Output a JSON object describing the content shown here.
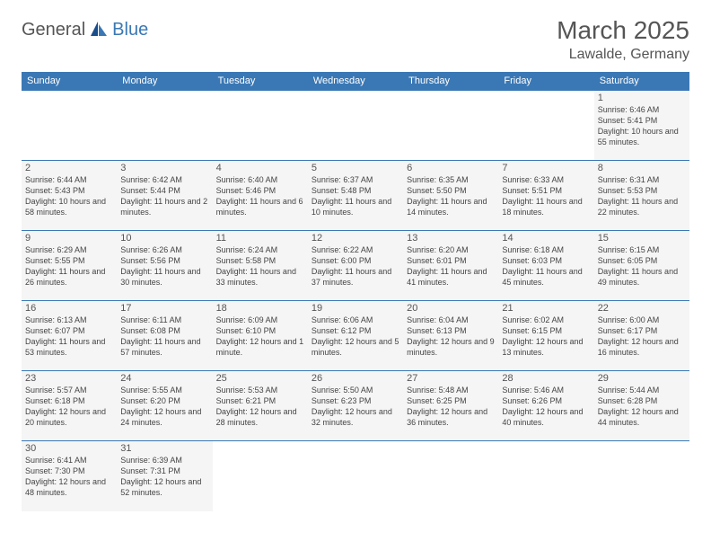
{
  "logo": {
    "part1": "General",
    "part2": "Blue"
  },
  "title": "March 2025",
  "location": "Lawalde, Germany",
  "headerBg": "#3a78b5",
  "dayNames": [
    "Sunday",
    "Monday",
    "Tuesday",
    "Wednesday",
    "Thursday",
    "Friday",
    "Saturday"
  ],
  "firstDayOffset": 6,
  "daysInMonth": 31,
  "days": {
    "1": {
      "sr": "6:46 AM",
      "ss": "5:41 PM",
      "dl": "10 hours and 55 minutes."
    },
    "2": {
      "sr": "6:44 AM",
      "ss": "5:43 PM",
      "dl": "10 hours and 58 minutes."
    },
    "3": {
      "sr": "6:42 AM",
      "ss": "5:44 PM",
      "dl": "11 hours and 2 minutes."
    },
    "4": {
      "sr": "6:40 AM",
      "ss": "5:46 PM",
      "dl": "11 hours and 6 minutes."
    },
    "5": {
      "sr": "6:37 AM",
      "ss": "5:48 PM",
      "dl": "11 hours and 10 minutes."
    },
    "6": {
      "sr": "6:35 AM",
      "ss": "5:50 PM",
      "dl": "11 hours and 14 minutes."
    },
    "7": {
      "sr": "6:33 AM",
      "ss": "5:51 PM",
      "dl": "11 hours and 18 minutes."
    },
    "8": {
      "sr": "6:31 AM",
      "ss": "5:53 PM",
      "dl": "11 hours and 22 minutes."
    },
    "9": {
      "sr": "6:29 AM",
      "ss": "5:55 PM",
      "dl": "11 hours and 26 minutes."
    },
    "10": {
      "sr": "6:26 AM",
      "ss": "5:56 PM",
      "dl": "11 hours and 30 minutes."
    },
    "11": {
      "sr": "6:24 AM",
      "ss": "5:58 PM",
      "dl": "11 hours and 33 minutes."
    },
    "12": {
      "sr": "6:22 AM",
      "ss": "6:00 PM",
      "dl": "11 hours and 37 minutes."
    },
    "13": {
      "sr": "6:20 AM",
      "ss": "6:01 PM",
      "dl": "11 hours and 41 minutes."
    },
    "14": {
      "sr": "6:18 AM",
      "ss": "6:03 PM",
      "dl": "11 hours and 45 minutes."
    },
    "15": {
      "sr": "6:15 AM",
      "ss": "6:05 PM",
      "dl": "11 hours and 49 minutes."
    },
    "16": {
      "sr": "6:13 AM",
      "ss": "6:07 PM",
      "dl": "11 hours and 53 minutes."
    },
    "17": {
      "sr": "6:11 AM",
      "ss": "6:08 PM",
      "dl": "11 hours and 57 minutes."
    },
    "18": {
      "sr": "6:09 AM",
      "ss": "6:10 PM",
      "dl": "12 hours and 1 minute."
    },
    "19": {
      "sr": "6:06 AM",
      "ss": "6:12 PM",
      "dl": "12 hours and 5 minutes."
    },
    "20": {
      "sr": "6:04 AM",
      "ss": "6:13 PM",
      "dl": "12 hours and 9 minutes."
    },
    "21": {
      "sr": "6:02 AM",
      "ss": "6:15 PM",
      "dl": "12 hours and 13 minutes."
    },
    "22": {
      "sr": "6:00 AM",
      "ss": "6:17 PM",
      "dl": "12 hours and 16 minutes."
    },
    "23": {
      "sr": "5:57 AM",
      "ss": "6:18 PM",
      "dl": "12 hours and 20 minutes."
    },
    "24": {
      "sr": "5:55 AM",
      "ss": "6:20 PM",
      "dl": "12 hours and 24 minutes."
    },
    "25": {
      "sr": "5:53 AM",
      "ss": "6:21 PM",
      "dl": "12 hours and 28 minutes."
    },
    "26": {
      "sr": "5:50 AM",
      "ss": "6:23 PM",
      "dl": "12 hours and 32 minutes."
    },
    "27": {
      "sr": "5:48 AM",
      "ss": "6:25 PM",
      "dl": "12 hours and 36 minutes."
    },
    "28": {
      "sr": "5:46 AM",
      "ss": "6:26 PM",
      "dl": "12 hours and 40 minutes."
    },
    "29": {
      "sr": "5:44 AM",
      "ss": "6:28 PM",
      "dl": "12 hours and 44 minutes."
    },
    "30": {
      "sr": "6:41 AM",
      "ss": "7:30 PM",
      "dl": "12 hours and 48 minutes."
    },
    "31": {
      "sr": "6:39 AM",
      "ss": "7:31 PM",
      "dl": "12 hours and 52 minutes."
    }
  },
  "labels": {
    "sunrise": "Sunrise:",
    "sunset": "Sunset:",
    "daylight": "Daylight:"
  }
}
